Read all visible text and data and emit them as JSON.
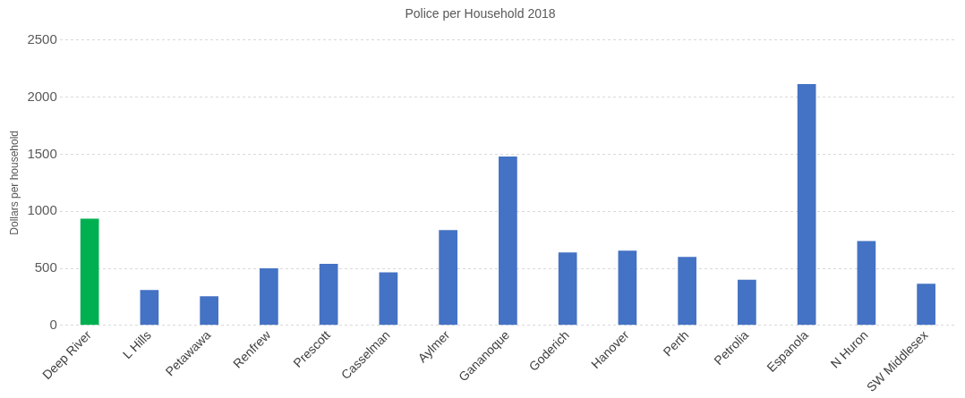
{
  "chart_data": {
    "type": "bar",
    "title": "Police per Household 2018",
    "ylabel": "Dollars per household",
    "categories": [
      "Deep River",
      "L Hills",
      "Petawawa",
      "Renfrew",
      "Prescott",
      "Casselman",
      "Aylmer",
      "Gananoque",
      "Goderich",
      "Hanover",
      "Perth",
      "Petrolia",
      "Espanola",
      "N Huron",
      "SW Middlesex"
    ],
    "values": [
      935,
      310,
      255,
      500,
      540,
      465,
      835,
      1480,
      640,
      655,
      600,
      400,
      2115,
      740,
      365
    ],
    "colors": [
      "#00b050",
      "#4472c4",
      "#4472c4",
      "#4472c4",
      "#4472c4",
      "#4472c4",
      "#4472c4",
      "#4472c4",
      "#4472c4",
      "#4472c4",
      "#4472c4",
      "#4472c4",
      "#4472c4",
      "#4472c4",
      "#4472c4"
    ],
    "ylim": [
      0,
      2500
    ],
    "yticks": [
      0,
      500,
      1000,
      1500,
      2000,
      2500
    ],
    "grid": "y",
    "legend": false
  }
}
